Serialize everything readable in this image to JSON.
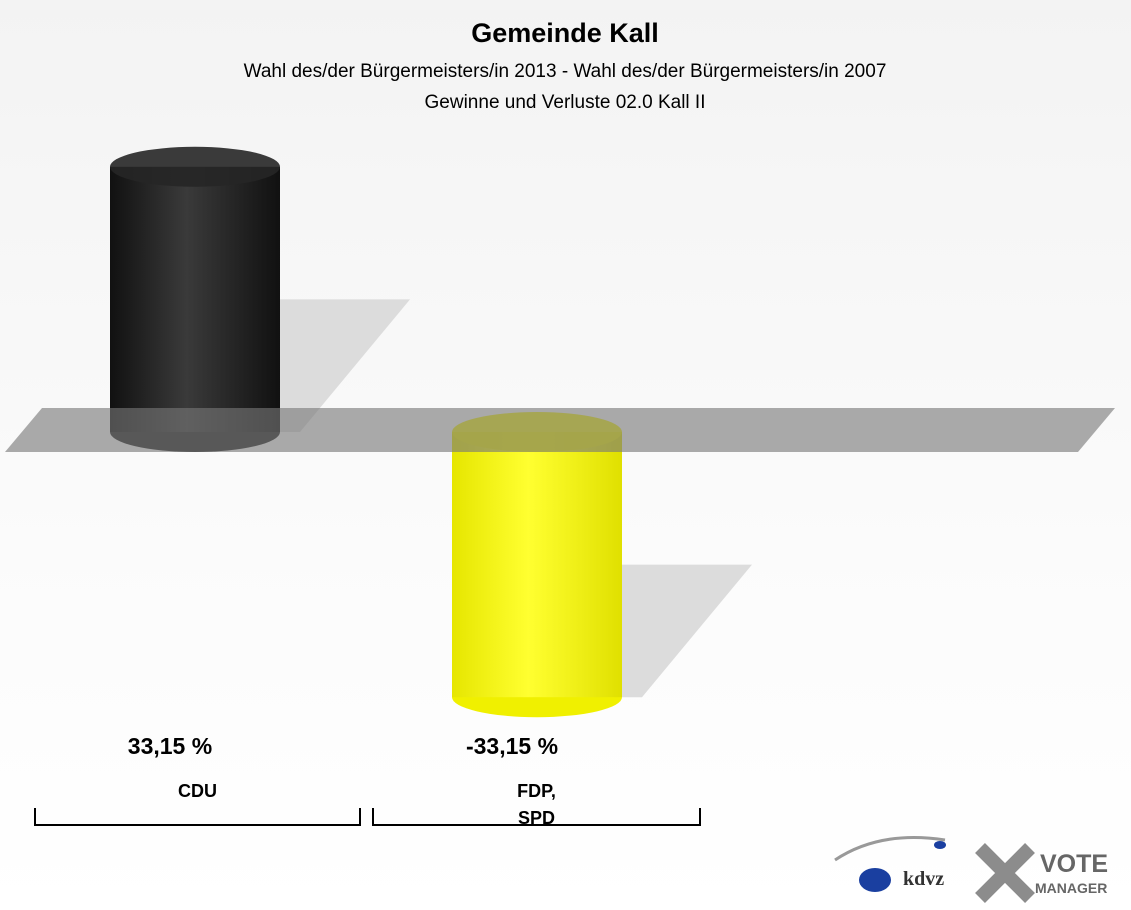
{
  "chart_data": {
    "type": "bar",
    "title": "Gemeinde Kall",
    "subtitle": [
      "Wahl des/der Bürgermeisters/in 2013 - Wahl des/der Bürgermeisters/in  2007",
      "Gewinne und Verluste 02.0 Kall II"
    ],
    "categories": [
      "CDU",
      "FDP,\nSPD"
    ],
    "values": [
      33.15,
      -33.15
    ],
    "value_labels": [
      "33,15 %",
      "-33,15 %"
    ],
    "colors": [
      "#262626",
      "#f0f000"
    ],
    "branding": [
      "kdvz",
      "VOTE",
      "MANAGER"
    ]
  }
}
